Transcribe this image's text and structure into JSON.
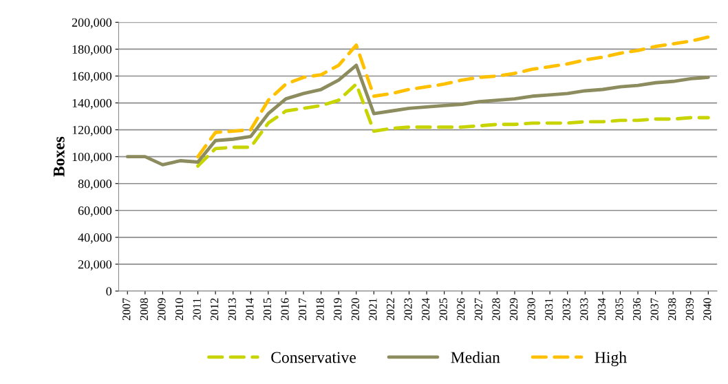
{
  "chart_data": {
    "type": "line",
    "ylabel": "Boxes",
    "categories": [
      "2007",
      "2008",
      "2009",
      "2010",
      "2011",
      "2012",
      "2013",
      "2014",
      "2015",
      "2016",
      "2017",
      "2018",
      "2019",
      "2020",
      "2021",
      "2022",
      "2023",
      "2024",
      "2025",
      "2026",
      "2027",
      "2028",
      "2029",
      "2030",
      "2031",
      "2032",
      "2033",
      "2034",
      "2035",
      "2036",
      "2037",
      "2038",
      "2039",
      "2040"
    ],
    "series": [
      {
        "name": "Conservative",
        "color": "#c8d400",
        "line_style": "dashed",
        "values": [
          null,
          null,
          null,
          null,
          93000,
          106000,
          107000,
          107000,
          125000,
          134000,
          136000,
          138000,
          142000,
          154000,
          119000,
          121000,
          122000,
          122000,
          122000,
          122000,
          123000,
          124000,
          124000,
          125000,
          125000,
          125000,
          126000,
          126000,
          127000,
          127000,
          128000,
          128000,
          129000,
          129000
        ]
      },
      {
        "name": "Median",
        "color": "#8c8c5e",
        "line_style": "solid",
        "values": [
          100000,
          100000,
          94000,
          97000,
          96000,
          112000,
          113000,
          115000,
          132000,
          143000,
          147000,
          150000,
          157000,
          168000,
          132000,
          134000,
          136000,
          137000,
          138000,
          139000,
          141000,
          142000,
          143000,
          145000,
          146000,
          147000,
          149000,
          150000,
          152000,
          153000,
          155000,
          156000,
          158000,
          159000
        ]
      },
      {
        "name": "High",
        "color": "#ffc000",
        "line_style": "dashed",
        "values": [
          null,
          null,
          null,
          null,
          100000,
          118000,
          119000,
          120000,
          142000,
          154000,
          159000,
          161000,
          168000,
          183000,
          145000,
          147000,
          150000,
          152000,
          154000,
          157000,
          159000,
          160000,
          162000,
          165000,
          167000,
          169000,
          172000,
          174000,
          177000,
          179000,
          182000,
          184000,
          186000,
          189000
        ]
      }
    ],
    "ylim": [
      0,
      200000
    ],
    "yticks": [
      {
        "value": 0,
        "label": "0"
      },
      {
        "value": 20000,
        "label": "20,000"
      },
      {
        "value": 40000,
        "label": "40,000"
      },
      {
        "value": 60000,
        "label": "60,000"
      },
      {
        "value": 80000,
        "label": "80,000"
      },
      {
        "value": 100000,
        "label": "100,000"
      },
      {
        "value": 120000,
        "label": "120,000"
      },
      {
        "value": 140000,
        "label": "140,000"
      },
      {
        "value": 160000,
        "label": "160,000"
      },
      {
        "value": 180000,
        "label": "180,000"
      },
      {
        "value": 200000,
        "label": "200,000"
      }
    ],
    "grid": "y",
    "legend": "bottom",
    "marker": "none"
  }
}
